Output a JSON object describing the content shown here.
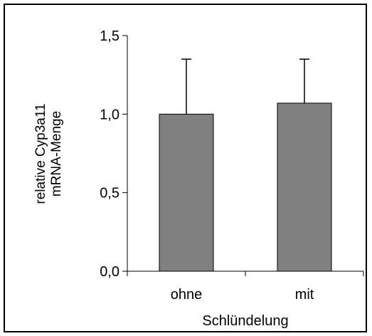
{
  "chart_data": {
    "type": "bar",
    "categories": [
      "ohne",
      "mit"
    ],
    "values": [
      1.0,
      1.07
    ],
    "error_upper": [
      1.35,
      1.35
    ],
    "ylabel_lines": [
      "relative Cyp3a11",
      "mRNA-Menge"
    ],
    "xlabel": "Schlündelung",
    "ylim": [
      0,
      1.5
    ],
    "yticks": [
      0.0,
      0.5,
      1.0,
      1.5
    ],
    "ytick_labels": [
      "0,0",
      "0,5",
      "1,0",
      "1,5"
    ],
    "grid": false,
    "legend": "none",
    "colors": {
      "bar_fill": "#808080",
      "bar_stroke": "#000000",
      "axis": "#000000",
      "background": "#ffffff"
    }
  }
}
